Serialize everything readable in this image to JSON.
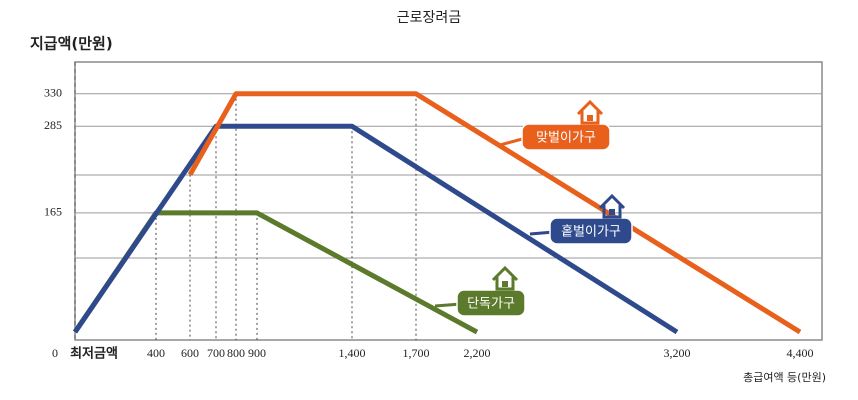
{
  "chart_data": {
    "type": "line",
    "title": "근로장려금",
    "y_label": "지급액(만원)",
    "x_label": "총급여액 등(만원)",
    "categories": [
      "최저금액",
      "400",
      "600",
      "700",
      "800",
      "900",
      "1,400",
      "1,700",
      "2,200",
      "3,200",
      "4,400"
    ],
    "series": [
      {
        "name": "맞벌이가구",
        "color": "#e8601c",
        "values": [
          null,
          null,
          218,
          null,
          330,
          null,
          null,
          330,
          null,
          null,
          0
        ]
      },
      {
        "name": "홑벌이가구",
        "color": "#2e4a8c",
        "values": [
          0,
          null,
          null,
          285,
          null,
          null,
          285,
          null,
          null,
          0,
          null
        ]
      },
      {
        "name": "단독가구",
        "color": "#5b7a2c",
        "values": [
          0,
          165,
          null,
          null,
          null,
          165,
          null,
          null,
          0,
          null,
          null
        ]
      }
    ],
    "ylim": [
      -11,
      374
    ],
    "yticks": [
      0,
      165,
      285,
      330
    ]
  }
}
